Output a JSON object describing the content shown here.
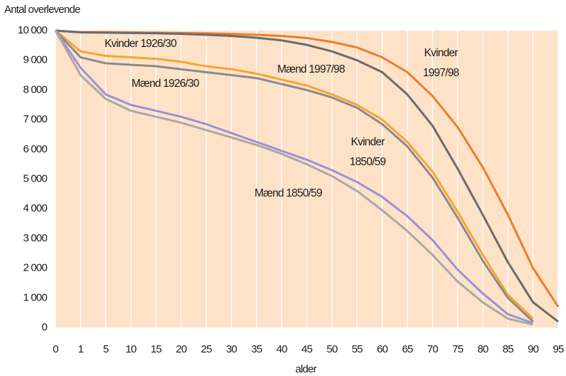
{
  "chart_data": {
    "type": "line",
    "y_label": "Antal overlevende",
    "x_label": "alder",
    "categories": [
      0,
      1,
      5,
      10,
      15,
      20,
      25,
      30,
      35,
      40,
      45,
      50,
      55,
      60,
      65,
      70,
      75,
      80,
      85,
      90,
      95
    ],
    "series": [
      {
        "name": "Kvinder 1997/98",
        "color": "#f07a2e",
        "values": [
          10000,
          9950,
          9950,
          9940,
          9930,
          9920,
          9910,
          9890,
          9860,
          9820,
          9750,
          9620,
          9430,
          9100,
          8600,
          7800,
          6750,
          5400,
          3800,
          2000,
          700
        ]
      },
      {
        "name": "Mænd 1997/98",
        "color": "#6b6b6e",
        "values": [
          10000,
          9940,
          9930,
          9920,
          9910,
          9890,
          9860,
          9820,
          9760,
          9670,
          9520,
          9300,
          9000,
          8600,
          7850,
          6800,
          5350,
          3800,
          2200,
          850,
          200
        ]
      },
      {
        "name": "Kvinder 1926/30",
        "color": "#f6a530",
        "values": [
          10000,
          9300,
          9150,
          9100,
          9050,
          8950,
          8800,
          8700,
          8550,
          8350,
          8150,
          7850,
          7500,
          7000,
          6250,
          5250,
          3900,
          2450,
          1100,
          300,
          null
        ]
      },
      {
        "name": "Mænd 1926/30",
        "color": "#8a8a8c",
        "values": [
          10000,
          9100,
          8900,
          8850,
          8800,
          8700,
          8600,
          8500,
          8400,
          8200,
          8000,
          7750,
          7400,
          6850,
          6100,
          5050,
          3700,
          2250,
          1000,
          200,
          null
        ]
      },
      {
        "name": "Kvinder 1850/59",
        "color": "#9c90d8",
        "values": [
          10000,
          8750,
          7850,
          7500,
          7300,
          7100,
          6850,
          6550,
          6250,
          5950,
          5650,
          5300,
          4900,
          4400,
          3750,
          2950,
          1950,
          1150,
          450,
          150,
          null
        ]
      },
      {
        "name": "Mænd 1850/59",
        "color": "#a9a9a9",
        "values": [
          10000,
          8500,
          7700,
          7300,
          7100,
          6900,
          6650,
          6400,
          6150,
          5850,
          5500,
          5100,
          4600,
          3950,
          3250,
          2450,
          1550,
          850,
          300,
          100,
          null
        ]
      }
    ],
    "ylim": [
      0,
      10000
    ],
    "yticks": [
      0,
      {
        "value": 1000,
        "label": "1 000"
      },
      {
        "value": 2000,
        "label": "2 000"
      },
      {
        "value": 3000,
        "label": "3 000"
      },
      {
        "value": 4000,
        "label": "4 000"
      },
      {
        "value": 5000,
        "label": "5 000"
      },
      {
        "value": 6000,
        "label": "6 000"
      },
      {
        "value": 7000,
        "label": "7 000"
      },
      {
        "value": 8000,
        "label": "8 000"
      },
      {
        "value": 9000,
        "label": "9 000"
      },
      {
        "value": 10000,
        "label": "10 000"
      }
    ],
    "background": "#fde2c8"
  }
}
